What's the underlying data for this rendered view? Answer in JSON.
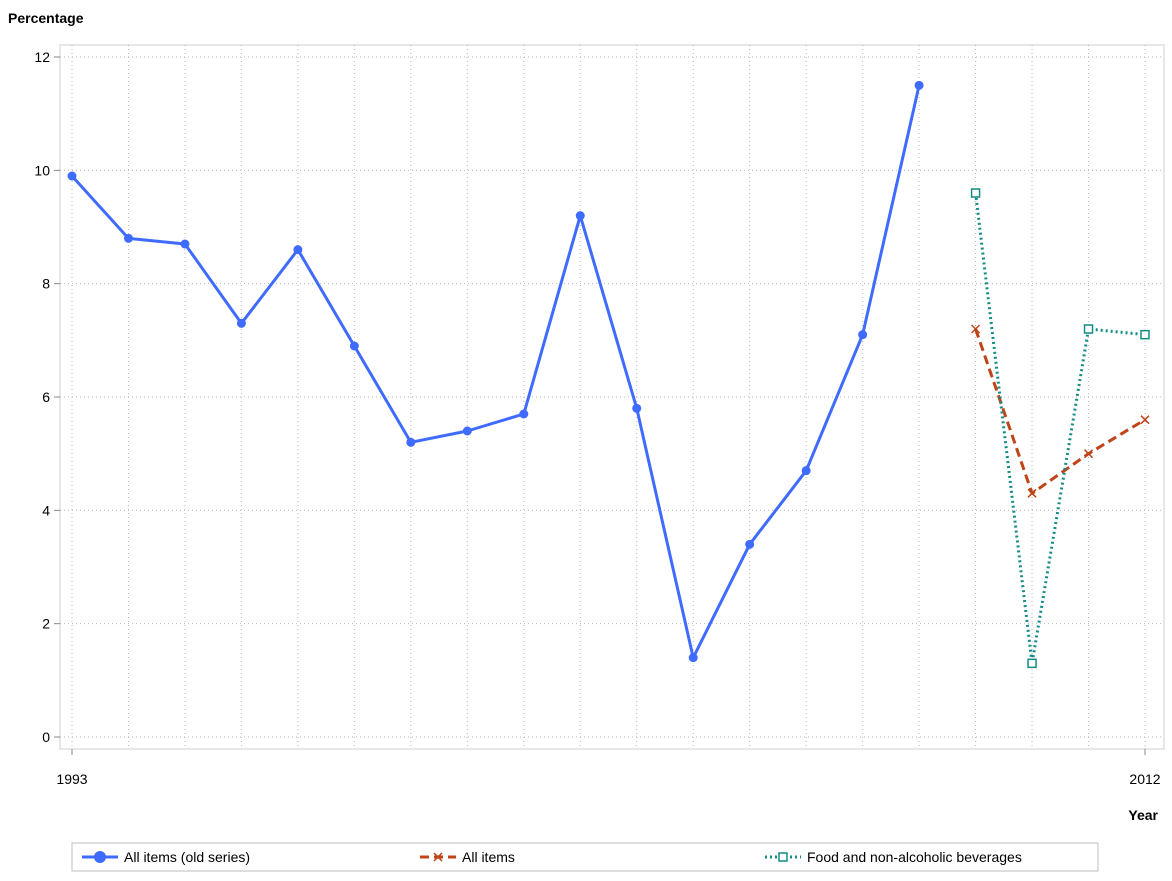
{
  "chart_data": {
    "type": "line",
    "title": "",
    "ylabel": "Percentage",
    "xlabel": "Year",
    "x_tick_labels": [
      "1993",
      "2012"
    ],
    "x_range": [
      1993,
      2012
    ],
    "ylim": [
      0,
      12
    ],
    "y_ticks": [
      0,
      2,
      4,
      6,
      8,
      10,
      12
    ],
    "grid": true,
    "legend_position": "bottom",
    "series": [
      {
        "name": "All items (old series)",
        "color": "#3f6bff",
        "style": "solid",
        "marker": "circle",
        "x": [
          1993,
          1994,
          1995,
          1996,
          1997,
          1998,
          1999,
          2000,
          2001,
          2002,
          2003,
          2004,
          2005,
          2006,
          2007,
          2008
        ],
        "values": [
          9.9,
          8.8,
          8.7,
          7.3,
          8.6,
          6.9,
          5.2,
          5.4,
          5.7,
          9.2,
          5.8,
          1.4,
          3.4,
          4.7,
          7.1,
          11.5
        ]
      },
      {
        "name": "All items",
        "color": "#c0441a",
        "style": "dashed",
        "marker": "x",
        "x": [
          2009,
          2010,
          2011,
          2012
        ],
        "values": [
          7.2,
          4.3,
          5.0,
          5.6
        ]
      },
      {
        "name": "Food and non-alcoholic beverages",
        "color": "#138c85",
        "style": "dotted",
        "marker": "square",
        "x": [
          2009,
          2010,
          2011,
          2012
        ],
        "values": [
          9.6,
          1.3,
          7.2,
          7.1
        ]
      }
    ]
  }
}
